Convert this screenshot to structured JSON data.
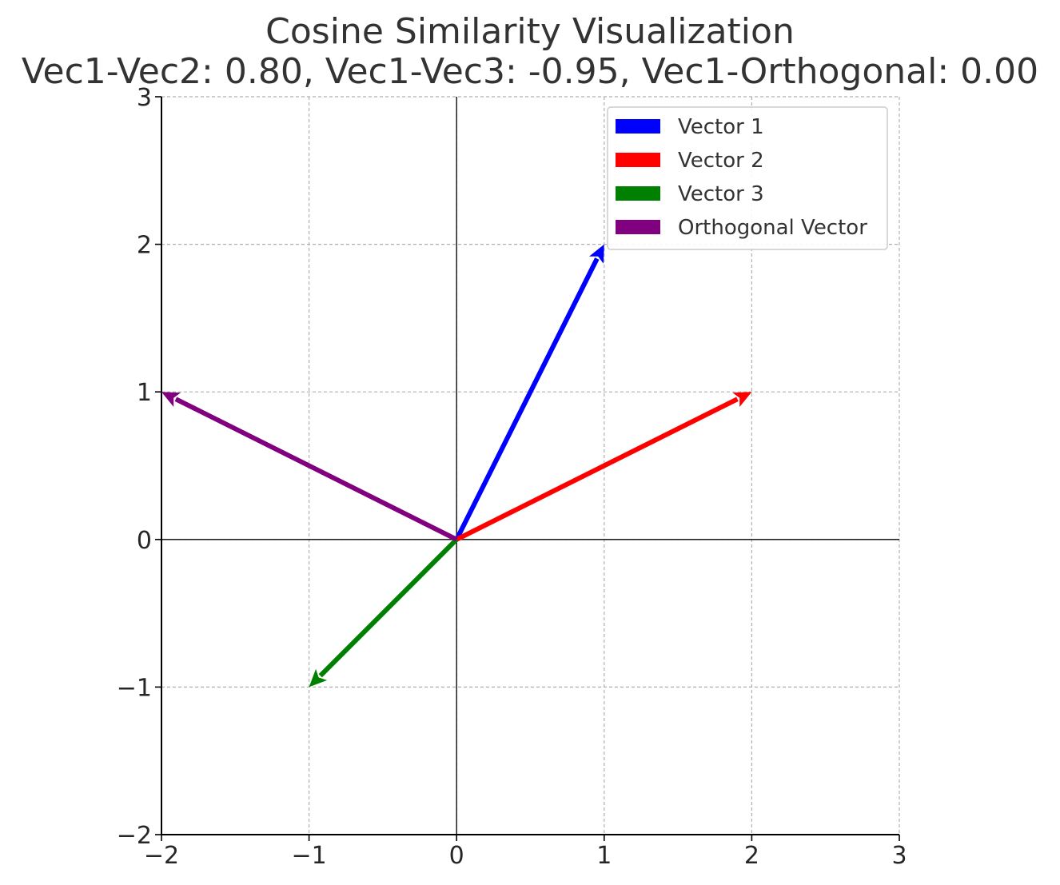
{
  "chart_data": {
    "type": "quiver",
    "title": "Cosine Similarity Visualization",
    "subtitle": "Vec1-Vec2: 0.80, Vec1-Vec3: -0.95, Vec1-Orthogonal: 0.00",
    "xlabel": "",
    "ylabel": "",
    "xlim": [
      -2,
      3
    ],
    "ylim": [
      -2,
      3
    ],
    "x_ticks": [
      -2,
      -1,
      0,
      1,
      2,
      3
    ],
    "y_ticks": [
      -2,
      -1,
      0,
      1,
      2,
      3
    ],
    "x_tick_labels": [
      "−2",
      "−1",
      "0",
      "1",
      "2",
      "3"
    ],
    "y_tick_labels": [
      "−2",
      "−1",
      "0",
      "1",
      "2",
      "3"
    ],
    "grid": true,
    "axis_lines_through_origin": true,
    "legend_position": "top-right",
    "series": [
      {
        "name": "Vector 1",
        "origin": [
          0,
          0
        ],
        "vector": [
          1,
          2
        ],
        "color": "#0000ff"
      },
      {
        "name": "Vector 2",
        "origin": [
          0,
          0
        ],
        "vector": [
          2,
          1
        ],
        "color": "#ff0000"
      },
      {
        "name": "Vector 3",
        "origin": [
          0,
          0
        ],
        "vector": [
          -1,
          -1
        ],
        "color": "#008000"
      },
      {
        "name": "Orthogonal Vector",
        "origin": [
          0,
          0
        ],
        "vector": [
          -2,
          1
        ],
        "color": "#800080"
      }
    ]
  }
}
